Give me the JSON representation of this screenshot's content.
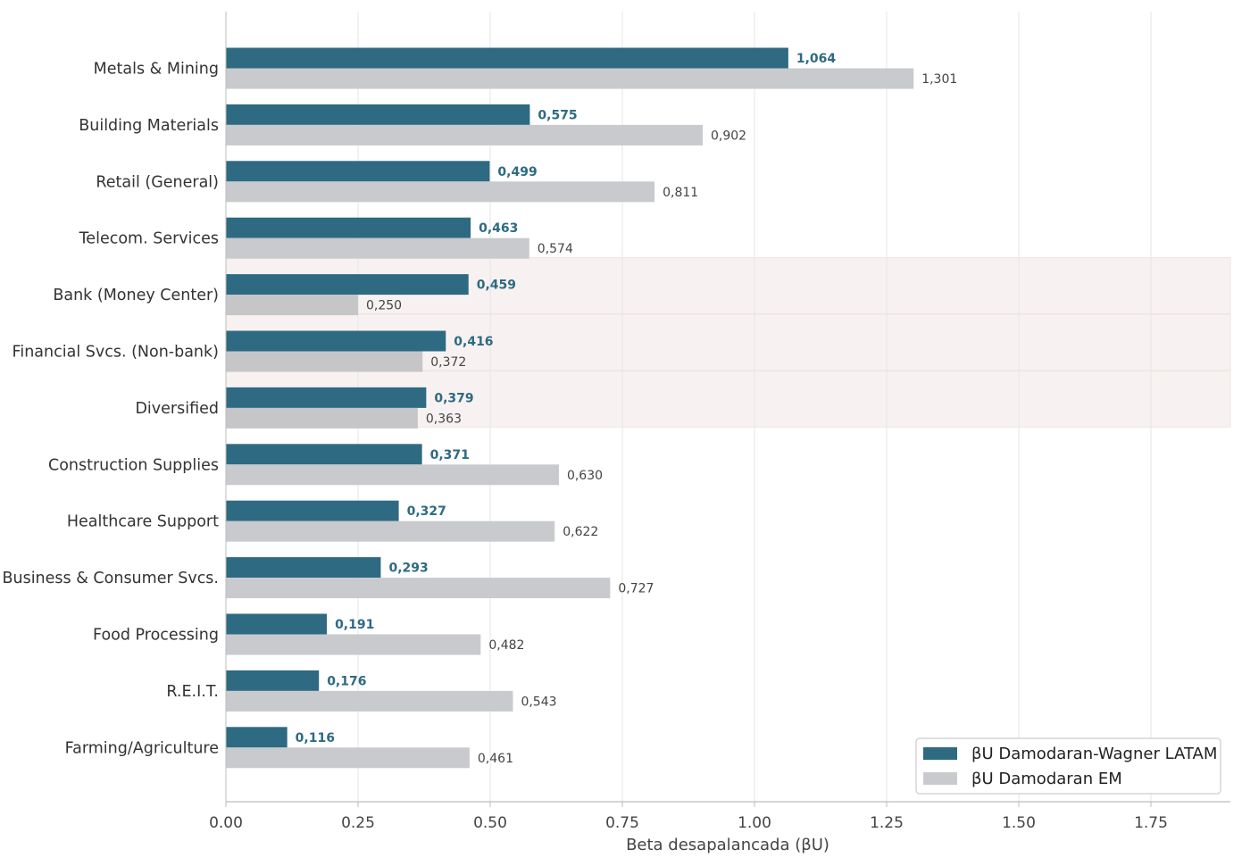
{
  "chart_data": {
    "type": "bar",
    "orientation": "horizontal",
    "xlabel": "Beta desapalancada (βU)",
    "ylabel": "",
    "title": "",
    "xlim": [
      0,
      1.9
    ],
    "xticks": [
      0.0,
      0.25,
      0.5,
      0.75,
      1.0,
      1.25,
      1.5,
      1.75
    ],
    "xtick_labels": [
      "0.00",
      "0.25",
      "0.50",
      "0.75",
      "1.00",
      "1.25",
      "1.50",
      "1.75"
    ],
    "grid": "vertical",
    "legend_position": "bottom-right",
    "highlighted_categories": [
      "Bank (Money Center)",
      "Financial Svcs. (Non-bank)",
      "Diversified"
    ],
    "categories": [
      "Metals & Mining",
      "Building Materials",
      "Retail (General)",
      "Telecom. Services",
      "Bank (Money Center)",
      "Financial Svcs. (Non-bank)",
      "Diversified",
      "Construction Supplies",
      "Healthcare Support",
      "Business & Consumer Svcs.",
      "Food Processing",
      "R.E.I.T.",
      "Farming/Agriculture"
    ],
    "series": [
      {
        "name": "βU Damodaran-Wagner LATAM",
        "color": "#2e6a82",
        "values": [
          1.064,
          0.575,
          0.499,
          0.463,
          0.459,
          0.416,
          0.379,
          0.371,
          0.327,
          0.293,
          0.191,
          0.176,
          0.116
        ],
        "labels": [
          "1,064",
          "0,575",
          "0,499",
          "0,463",
          "0,459",
          "0,416",
          "0,379",
          "0,371",
          "0,327",
          "0,293",
          "0,191",
          "0,176",
          "0,116"
        ]
      },
      {
        "name": "βU Damodaran EM",
        "color": "#c8cacd",
        "values": [
          1.301,
          0.902,
          0.811,
          0.574,
          0.25,
          0.372,
          0.363,
          0.63,
          0.622,
          0.727,
          0.482,
          0.543,
          0.461
        ],
        "labels": [
          "1,301",
          "0,902",
          "0,811",
          "0,574",
          "0,250",
          "0,372",
          "0,363",
          "0,630",
          "0,622",
          "0,727",
          "0,482",
          "0,543",
          "0,461"
        ]
      }
    ]
  },
  "colors": {
    "latam": "#2e6a82",
    "em": "#c8cacd",
    "highlight_band": "#f7f2f1",
    "grid": "#e6e6e6",
    "axis": "#bdbdbd",
    "text": "#333333"
  }
}
